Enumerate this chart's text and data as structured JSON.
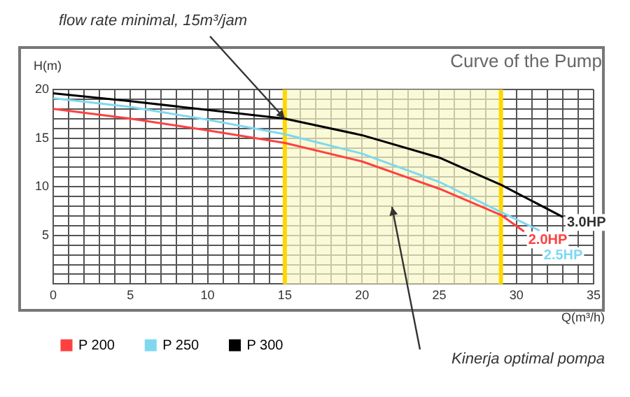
{
  "chart_data": {
    "type": "line",
    "title": "Curve of the Pump",
    "xlabel": "Q(m³/h)",
    "ylabel": "H(m)",
    "series": [
      {
        "name": "P 200",
        "color": "#ff4040",
        "x": [
          0,
          5,
          10,
          15,
          20,
          25,
          29,
          30.5
        ],
        "values": [
          18.0,
          17.0,
          15.8,
          14.5,
          12.6,
          9.8,
          7.1,
          5.4
        ]
      },
      {
        "name": "P 250",
        "color": "#7fd8f0",
        "x": [
          0,
          5,
          10,
          15,
          20,
          25,
          29,
          31.5
        ],
        "values": [
          19.1,
          18.2,
          16.9,
          15.4,
          13.4,
          10.5,
          7.4,
          5.5
        ]
      },
      {
        "name": "P 300",
        "color": "#000000",
        "x": [
          0,
          5,
          10,
          15,
          20,
          25,
          29,
          33
        ],
        "values": [
          19.6,
          18.8,
          17.9,
          17.0,
          15.3,
          13.0,
          10.2,
          6.9
        ]
      }
    ],
    "xlim": [
      0,
      35
    ],
    "xticks": [
      0,
      {
        "value": 1,
        "label": null
      },
      {
        "value": 2,
        "label": null
      },
      {
        "value": 3,
        "label": null
      },
      {
        "value": 4,
        "label": null
      },
      5,
      {
        "value": 6,
        "label": null
      },
      {
        "value": 7,
        "label": null
      },
      {
        "value": 8,
        "label": null
      },
      {
        "value": 9,
        "label": null
      },
      10,
      {
        "value": 11,
        "label": null
      },
      {
        "value": 12,
        "label": null
      },
      {
        "value": 13,
        "label": null
      },
      {
        "value": 14,
        "label": null
      },
      15,
      {
        "value": 16,
        "label": null
      },
      {
        "value": 17,
        "label": null
      },
      {
        "value": 18,
        "label": null
      },
      {
        "value": 19,
        "label": null
      },
      20,
      {
        "value": 21,
        "label": null
      },
      {
        "value": 22,
        "label": null
      },
      {
        "value": 23,
        "label": null
      },
      {
        "value": 24,
        "label": null
      },
      25,
      {
        "value": 26,
        "label": null
      },
      {
        "value": 27,
        "label": null
      },
      {
        "value": 28,
        "label": null
      },
      {
        "value": 29,
        "label": null
      },
      30,
      {
        "value": 31,
        "label": null
      },
      {
        "value": 32,
        "label": null
      },
      {
        "value": 33,
        "label": null
      },
      {
        "value": 34,
        "label": null
      },
      35
    ],
    "ylim": [
      0,
      20
    ],
    "yticks": [
      {
        "value": 0,
        "label": null
      },
      {
        "value": 1,
        "label": null
      },
      {
        "value": 2,
        "label": null
      },
      {
        "value": 3,
        "label": null
      },
      {
        "value": 4,
        "label": null
      },
      5,
      {
        "value": 6,
        "label": null
      },
      {
        "value": 7,
        "label": null
      },
      {
        "value": 8,
        "label": null
      },
      {
        "value": 9,
        "label": null
      },
      10,
      {
        "value": 11,
        "label": null
      },
      {
        "value": 12,
        "label": null
      },
      {
        "value": 13,
        "label": null
      },
      {
        "value": 14,
        "label": null
      },
      15,
      {
        "value": 16,
        "label": null
      },
      {
        "value": 17,
        "label": null
      },
      {
        "value": 18,
        "label": null
      },
      {
        "value": 19,
        "label": null
      },
      20
    ],
    "grid": true,
    "legend": "bottom left",
    "marker": "none",
    "bands": [
      {
        "axis": "x",
        "from": 15,
        "to": 29,
        "color": "#f8f8c8"
      }
    ],
    "annotations": [
      {
        "text": "flow rate minimal, 15m³/jam",
        "x": 15,
        "y": 17
      },
      "Kinerja optimal pompa",
      {
        "text": "3.0HP",
        "x": 33,
        "y": 6.9
      },
      {
        "text": "2.0HP",
        "x": 30.5,
        "y": 5.4
      },
      {
        "text": "2.5HP",
        "x": 31.5,
        "y": 5.5
      }
    ]
  }
}
